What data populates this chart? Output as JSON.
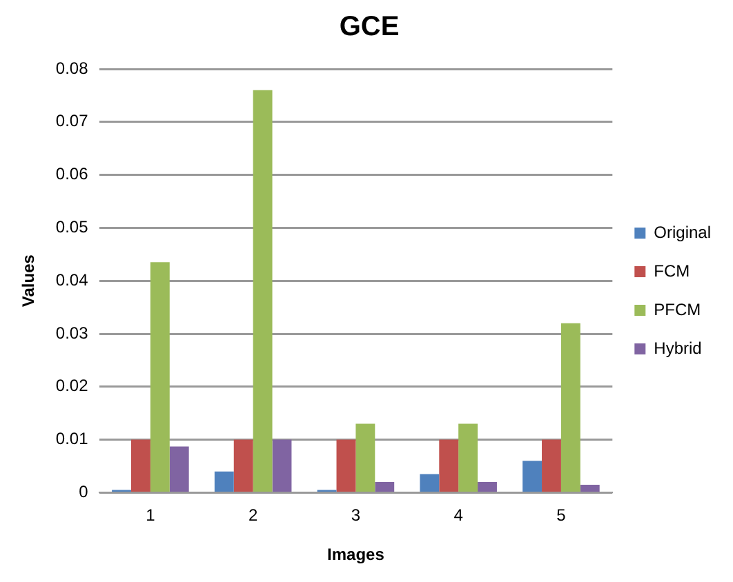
{
  "chart_data": {
    "type": "bar",
    "title": "GCE",
    "xlabel": "Images",
    "ylabel": "Values",
    "categories": [
      "1",
      "2",
      "3",
      "4",
      "5"
    ],
    "series": [
      {
        "name": "Original",
        "color": "#4f81bd",
        "values": [
          0.0005,
          0.004,
          0.0005,
          0.0035,
          0.006
        ]
      },
      {
        "name": "FCM",
        "color": "#c0504d",
        "values": [
          0.01,
          0.01,
          0.01,
          0.01,
          0.01
        ]
      },
      {
        "name": "PFCM",
        "color": "#9bbb59",
        "values": [
          0.0435,
          0.076,
          0.013,
          0.013,
          0.032
        ]
      },
      {
        "name": "Hybrid",
        "color": "#8064a2",
        "values": [
          0.0087,
          0.01,
          0.002,
          0.002,
          0.0015
        ]
      }
    ],
    "ylim": [
      0,
      0.08
    ],
    "yticks": [
      0,
      0.01,
      0.02,
      0.03,
      0.04,
      0.05,
      0.06,
      0.07,
      0.08
    ],
    "grid": "y",
    "legend": "right"
  }
}
